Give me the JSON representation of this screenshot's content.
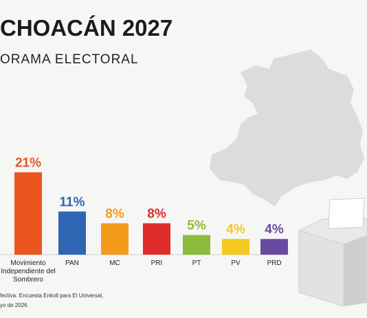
{
  "chart_data": {
    "type": "bar",
    "title": "CHOACÁN 2027",
    "subtitle": "ORAMA ELECTORAL",
    "categories": [
      "Movimiento Independiente del Sombrero",
      "PAN",
      "MC",
      "PRI",
      "PT",
      "PV",
      "PRD"
    ],
    "values": [
      21,
      11,
      8,
      8,
      5,
      4,
      4
    ],
    "value_labels": [
      "21%",
      "11%",
      "8%",
      "8%",
      "5%",
      "4%",
      "4%"
    ],
    "colors": [
      "#e8561e",
      "#2f66b3",
      "#f59a1c",
      "#e02b2b",
      "#8bbd3c",
      "#f5c91f",
      "#6a4aa0"
    ],
    "footnote": [
      "fectiva. Encuesta Enkoll para El Universal,",
      "yo de 2026."
    ]
  }
}
